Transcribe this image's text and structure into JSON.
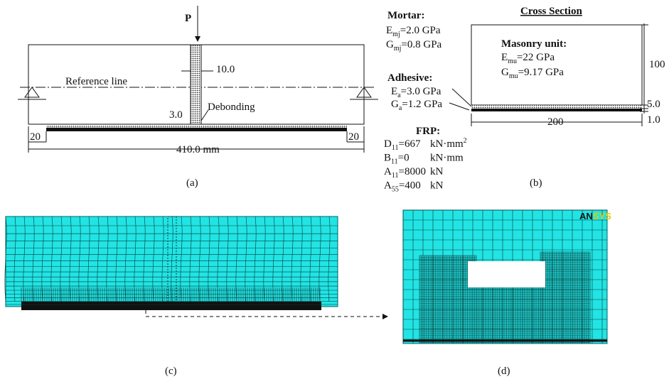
{
  "panel_a": {
    "load": "P",
    "joint_width": "10.0",
    "reference": "Reference line",
    "debonding": "Debonding",
    "adhesive_gap": "3.0",
    "left_offset": "20",
    "right_offset": "20",
    "span": "410.0 mm",
    "caption": "(a)"
  },
  "panel_b": {
    "title": "Cross Section",
    "mortar": {
      "heading": "Mortar:",
      "props": [
        {
          "sym": "E",
          "sub": "mj",
          "rest": "=2.0 GPa"
        },
        {
          "sym": "G",
          "sub": "mj",
          "rest": "=0.8 GPa"
        }
      ]
    },
    "masonry": {
      "heading": "Masonry unit:",
      "props": [
        {
          "sym": "E",
          "sub": "mu",
          "rest": "=22 GPa"
        },
        {
          "sym": "G",
          "sub": "mu",
          "rest": "=9.17 GPa"
        }
      ]
    },
    "adhesive": {
      "heading": "Adhesive:",
      "props": [
        {
          "sym": "E",
          "sub": "a",
          "rest": "=3.0 GPa"
        },
        {
          "sym": "G",
          "sub": "a",
          "rest": "=1.2 GPa"
        }
      ]
    },
    "frp": {
      "heading": "FRP:",
      "props": [
        {
          "sym": "D",
          "sub": "11",
          "rest": "=667",
          "unit": "kN·mm",
          "unit_sup": "2"
        },
        {
          "sym": "B",
          "sub": "11",
          "rest": "=0",
          "unit": "kN·mm"
        },
        {
          "sym": "A",
          "sub": "11",
          "rest": "=8000",
          "unit": "kN"
        },
        {
          "sym": "A",
          "sub": "55",
          "rest": "=400",
          "unit": "kN"
        }
      ]
    },
    "height": "100",
    "adhesive_thickness": "5.0",
    "frp_thickness": "1.0",
    "width": "200",
    "caption": "(b)"
  },
  "panel_c": {
    "caption": "(c)"
  },
  "panel_d": {
    "logo_a": "AN",
    "logo_b": "SYS",
    "caption": "(d)"
  }
}
